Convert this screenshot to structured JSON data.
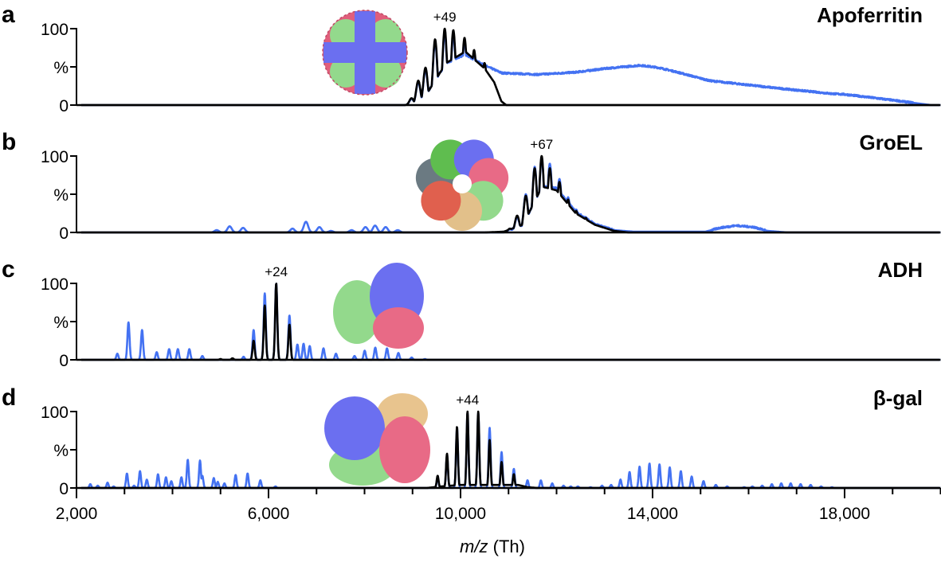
{
  "chart_data": {
    "type": "line",
    "xlim": [
      2000,
      20000
    ],
    "x_axis": {
      "label_var": "m/z",
      "label_unit": "(Th)",
      "ticks": [
        2000,
        6000,
        10000,
        14000,
        18000
      ],
      "tick_labels": [
        "2,000",
        "6,000",
        "10,000",
        "14,000",
        "18,000"
      ],
      "minor_tick_step": 1000
    },
    "grid": false,
    "colors": {
      "blue": "#4472f2",
      "black": "#000000"
    },
    "panels": [
      {
        "letter": "a",
        "title": "Apoferritin",
        "charge_label": "+49",
        "charge_mz": 9670,
        "ylim": [
          0,
          100
        ],
        "ytick_labels": [
          "100",
          "%",
          "0"
        ],
        "structure": "apoferritin-structure",
        "blue": {
          "peaks": [
            [
              8980,
              8
            ],
            [
              9120,
              30
            ],
            [
              9270,
              46
            ],
            [
              9470,
              82
            ],
            [
              9670,
              94
            ],
            [
              9850,
              92
            ],
            [
              10083,
              84
            ],
            [
              10282,
              68
            ],
            [
              10500,
              53
            ]
          ],
          "envelope": [
            [
              8900,
              0
            ],
            [
              9300,
              15
            ],
            [
              9700,
              55
            ],
            [
              10100,
              66
            ],
            [
              10500,
              52
            ],
            [
              10860,
              42
            ],
            [
              11600,
              40
            ],
            [
              12400,
              43
            ],
            [
              13040,
              48
            ],
            [
              13750,
              52
            ],
            [
              14120,
              49
            ],
            [
              14460,
              44
            ],
            [
              15180,
              32
            ],
            [
              16620,
              22
            ],
            [
              17720,
              15
            ],
            [
              18000,
              14
            ],
            [
              18800,
              8
            ],
            [
              19800,
              0
            ]
          ]
        },
        "black": {
          "peaks": [
            [
              8980,
              9
            ],
            [
              9120,
              32
            ],
            [
              9270,
              49
            ],
            [
              9470,
              86
            ],
            [
              9670,
              100
            ],
            [
              9850,
              98
            ],
            [
              10083,
              88
            ],
            [
              10282,
              72
            ],
            [
              10500,
              55
            ]
          ],
          "envelope": [
            [
              8900,
              0
            ],
            [
              9300,
              15
            ],
            [
              9700,
              55
            ],
            [
              10100,
              70
            ],
            [
              10500,
              48
            ],
            [
              10700,
              30
            ],
            [
              10850,
              5
            ],
            [
              10950,
              0
            ]
          ]
        }
      },
      {
        "letter": "b",
        "title": "GroEL",
        "charge_label": "+67",
        "charge_mz": 11690,
        "ylim": [
          0,
          100
        ],
        "ytick_labels": [
          "100",
          "%",
          "0"
        ],
        "structure": "groel-structure",
        "blue": {
          "peaks": [
            [
              4920,
              3
            ],
            [
              5190,
              8
            ],
            [
              5470,
              6
            ],
            [
              6500,
              5
            ],
            [
              6780,
              14
            ],
            [
              7060,
              7
            ],
            [
              7300,
              2
            ],
            [
              7730,
              3
            ],
            [
              8020,
              7
            ],
            [
              8220,
              9
            ],
            [
              8440,
              7
            ],
            [
              8690,
              3
            ],
            [
              11030,
              4
            ],
            [
              11180,
              20
            ],
            [
              11360,
              50
            ],
            [
              11545,
              86
            ],
            [
              11690,
              98
            ],
            [
              11860,
              90
            ],
            [
              12060,
              70
            ],
            [
              12240,
              46
            ],
            [
              12410,
              30
            ],
            [
              12610,
              20
            ],
            [
              15740,
              9
            ]
          ],
          "envelope": [
            [
              10900,
              0
            ],
            [
              11300,
              10
            ],
            [
              11700,
              60
            ],
            [
              12000,
              58
            ],
            [
              12400,
              27
            ],
            [
              12800,
              11
            ],
            [
              13200,
              3
            ],
            [
              13600,
              1
            ],
            [
              15100,
              1
            ],
            [
              15400,
              6
            ],
            [
              15740,
              9
            ],
            [
              16100,
              7
            ],
            [
              16400,
              2
            ],
            [
              16800,
              0
            ]
          ]
        },
        "black": {
          "peaks": [
            [
              11030,
              5
            ],
            [
              11180,
              22
            ],
            [
              11360,
              48
            ],
            [
              11545,
              84
            ],
            [
              11690,
              100
            ],
            [
              11860,
              84
            ],
            [
              12060,
              66
            ],
            [
              12240,
              43
            ],
            [
              12410,
              28
            ],
            [
              12610,
              19
            ]
          ],
          "envelope": [
            [
              10500,
              0
            ],
            [
              10900,
              1
            ],
            [
              11300,
              10
            ],
            [
              11700,
              60
            ],
            [
              12000,
              55
            ],
            [
              12400,
              25
            ],
            [
              12800,
              10
            ],
            [
              13200,
              2
            ],
            [
              13500,
              0
            ]
          ]
        }
      },
      {
        "letter": "c",
        "title": "ADH",
        "charge_label": "+24",
        "charge_mz": 6160,
        "ylim": [
          0,
          100
        ],
        "ytick_labels": [
          "100",
          "%",
          "0"
        ],
        "structure": "adh-structure",
        "blue": {
          "peaks": [
            [
              2851,
              8
            ],
            [
              3083,
              49
            ],
            [
              3366,
              39
            ],
            [
              3671,
              10
            ],
            [
              3930,
              14
            ],
            [
              4112,
              14
            ],
            [
              4351,
              14
            ],
            [
              4622,
              5
            ],
            [
              5480,
              4
            ],
            [
              5690,
              39
            ],
            [
              5922,
              87
            ],
            [
              6160,
              100
            ],
            [
              6436,
              58
            ],
            [
              6602,
              20
            ],
            [
              6730,
              21
            ],
            [
              6858,
              18
            ],
            [
              7145,
              15
            ],
            [
              7405,
              8
            ],
            [
              7792,
              5
            ],
            [
              8003,
              12
            ],
            [
              8224,
              16
            ],
            [
              8468,
              15
            ],
            [
              8705,
              9
            ],
            [
              8982,
              3
            ],
            [
              9258,
              1
            ]
          ],
          "envelope": []
        },
        "black": {
          "peaks": [
            [
              5000,
              1
            ],
            [
              5250,
              2
            ],
            [
              5690,
              25
            ],
            [
              5922,
              71
            ],
            [
              6160,
              100
            ],
            [
              6436,
              46
            ]
          ],
          "envelope": []
        }
      },
      {
        "letter": "d",
        "title": "β-gal",
        "charge_label": "+44",
        "charge_mz": 10145,
        "ylim": [
          0,
          100
        ],
        "ytick_labels": [
          "100",
          "%",
          "0"
        ],
        "structure": "beta-gal-structure",
        "blue": {
          "peaks": [
            [
              2288,
              5
            ],
            [
              2443,
              3
            ],
            [
              2647,
              7
            ],
            [
              2774,
              2
            ],
            [
              3051,
              19
            ],
            [
              3200,
              3
            ],
            [
              3323,
              22
            ],
            [
              3465,
              11
            ],
            [
              3698,
              18
            ],
            [
              3864,
              14
            ],
            [
              3975,
              9
            ],
            [
              4186,
              14
            ],
            [
              4318,
              37
            ],
            [
              4573,
              36
            ],
            [
              4622,
              16
            ],
            [
              4860,
              13
            ],
            [
              4943,
              8
            ],
            [
              5082,
              6
            ],
            [
              5315,
              17
            ],
            [
              5564,
              19
            ],
            [
              5830,
              10
            ],
            [
              6145,
              2
            ],
            [
              9523,
              14
            ],
            [
              9718,
              42
            ],
            [
              9926,
              78
            ],
            [
              10145,
              98
            ],
            [
              10369,
              98
            ],
            [
              10606,
              79
            ],
            [
              10855,
              47
            ],
            [
              11110,
              25
            ],
            [
              11395,
              10
            ],
            [
              11673,
              10
            ],
            [
              11910,
              6
            ],
            [
              12146,
              3
            ],
            [
              12296,
              2
            ],
            [
              12444,
              2
            ],
            [
              12710,
              1
            ],
            [
              12947,
              3
            ],
            [
              13136,
              4
            ],
            [
              13332,
              11
            ],
            [
              13521,
              21
            ],
            [
              13729,
              28
            ],
            [
              13936,
              32
            ],
            [
              14144,
              31
            ],
            [
              14358,
              27
            ],
            [
              14589,
              22
            ],
            [
              14815,
              15
            ],
            [
              15062,
              9
            ],
            [
              15318,
              4
            ],
            [
              15554,
              2
            ],
            [
              15909,
              1
            ],
            [
              16080,
              2
            ],
            [
              16284,
              3
            ],
            [
              16485,
              5
            ],
            [
              16681,
              6
            ],
            [
              16877,
              6
            ],
            [
              17084,
              5
            ],
            [
              17292,
              4
            ],
            [
              17511,
              2
            ],
            [
              17737,
              1
            ]
          ],
          "envelope": []
        },
        "black": {
          "peaks": [
            [
              9523,
              16
            ],
            [
              9718,
              45
            ],
            [
              9926,
              80
            ],
            [
              10145,
              100
            ],
            [
              10369,
              100
            ],
            [
              10606,
              63
            ],
            [
              10855,
              34
            ],
            [
              11110,
              18
            ]
          ],
          "envelope": [
            [
              9300,
              0
            ],
            [
              9600,
              2
            ],
            [
              10000,
              4
            ],
            [
              10800,
              4
            ],
            [
              11200,
              4
            ],
            [
              11400,
              1
            ],
            [
              11600,
              0
            ]
          ]
        }
      }
    ]
  }
}
